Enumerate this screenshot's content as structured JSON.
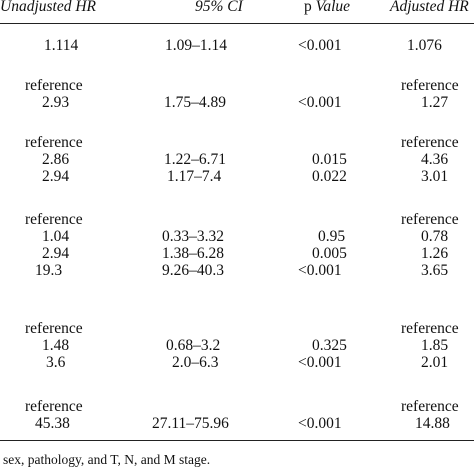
{
  "header": {
    "unadjusted_hr": "Unadjusted HR",
    "ci": "95% CI",
    "p_prefix": "p ",
    "p_italic": "Value",
    "adjusted_hr": "Adjusted HR"
  },
  "rows": [
    {
      "unadj": "1.114",
      "ci": "1.09–1.14",
      "p": "<0.001",
      "adj": "1.076"
    },
    {
      "unadj": "reference",
      "ci": "",
      "p": "",
      "adj": "reference"
    },
    {
      "unadj": "2.93",
      "ci": "1.75–4.89",
      "p": "<0.001",
      "adj": "1.27"
    },
    {
      "unadj": "reference",
      "ci": "",
      "p": "",
      "adj": "reference"
    },
    {
      "unadj": "2.86",
      "ci": "1.22–6.71",
      "p": "0.015",
      "adj": "4.36"
    },
    {
      "unadj": "2.94",
      "ci": "1.17–7.4",
      "p": "0.022",
      "adj": "3.01"
    },
    {
      "unadj": "reference",
      "ci": "",
      "p": "",
      "adj": "reference"
    },
    {
      "unadj": "1.04",
      "ci": "0.33–3.32",
      "p": "0.95",
      "adj": "0.78"
    },
    {
      "unadj": "2.94",
      "ci": "1.38–6.28",
      "p": "0.005",
      "adj": "1.26"
    },
    {
      "unadj": "19.3",
      "ci": "9.26–40.3",
      "p": "<0.001",
      "adj": "3.65"
    },
    {
      "unadj": "reference",
      "ci": "",
      "p": "",
      "adj": "reference"
    },
    {
      "unadj": "1.48",
      "ci": "0.68–3.2",
      "p": "0.325",
      "adj": "1.85"
    },
    {
      "unadj": "3.6",
      "ci": "2.0–6.3",
      "p": "<0.001",
      "adj": "2.01"
    },
    {
      "unadj": "reference",
      "ci": "",
      "p": "",
      "adj": "reference"
    },
    {
      "unadj": "45.38",
      "ci": "27.11–75.96",
      "p": "<0.001",
      "adj": "14.88"
    }
  ],
  "footnote": "sex, pathology, and T, N, and M stage."
}
